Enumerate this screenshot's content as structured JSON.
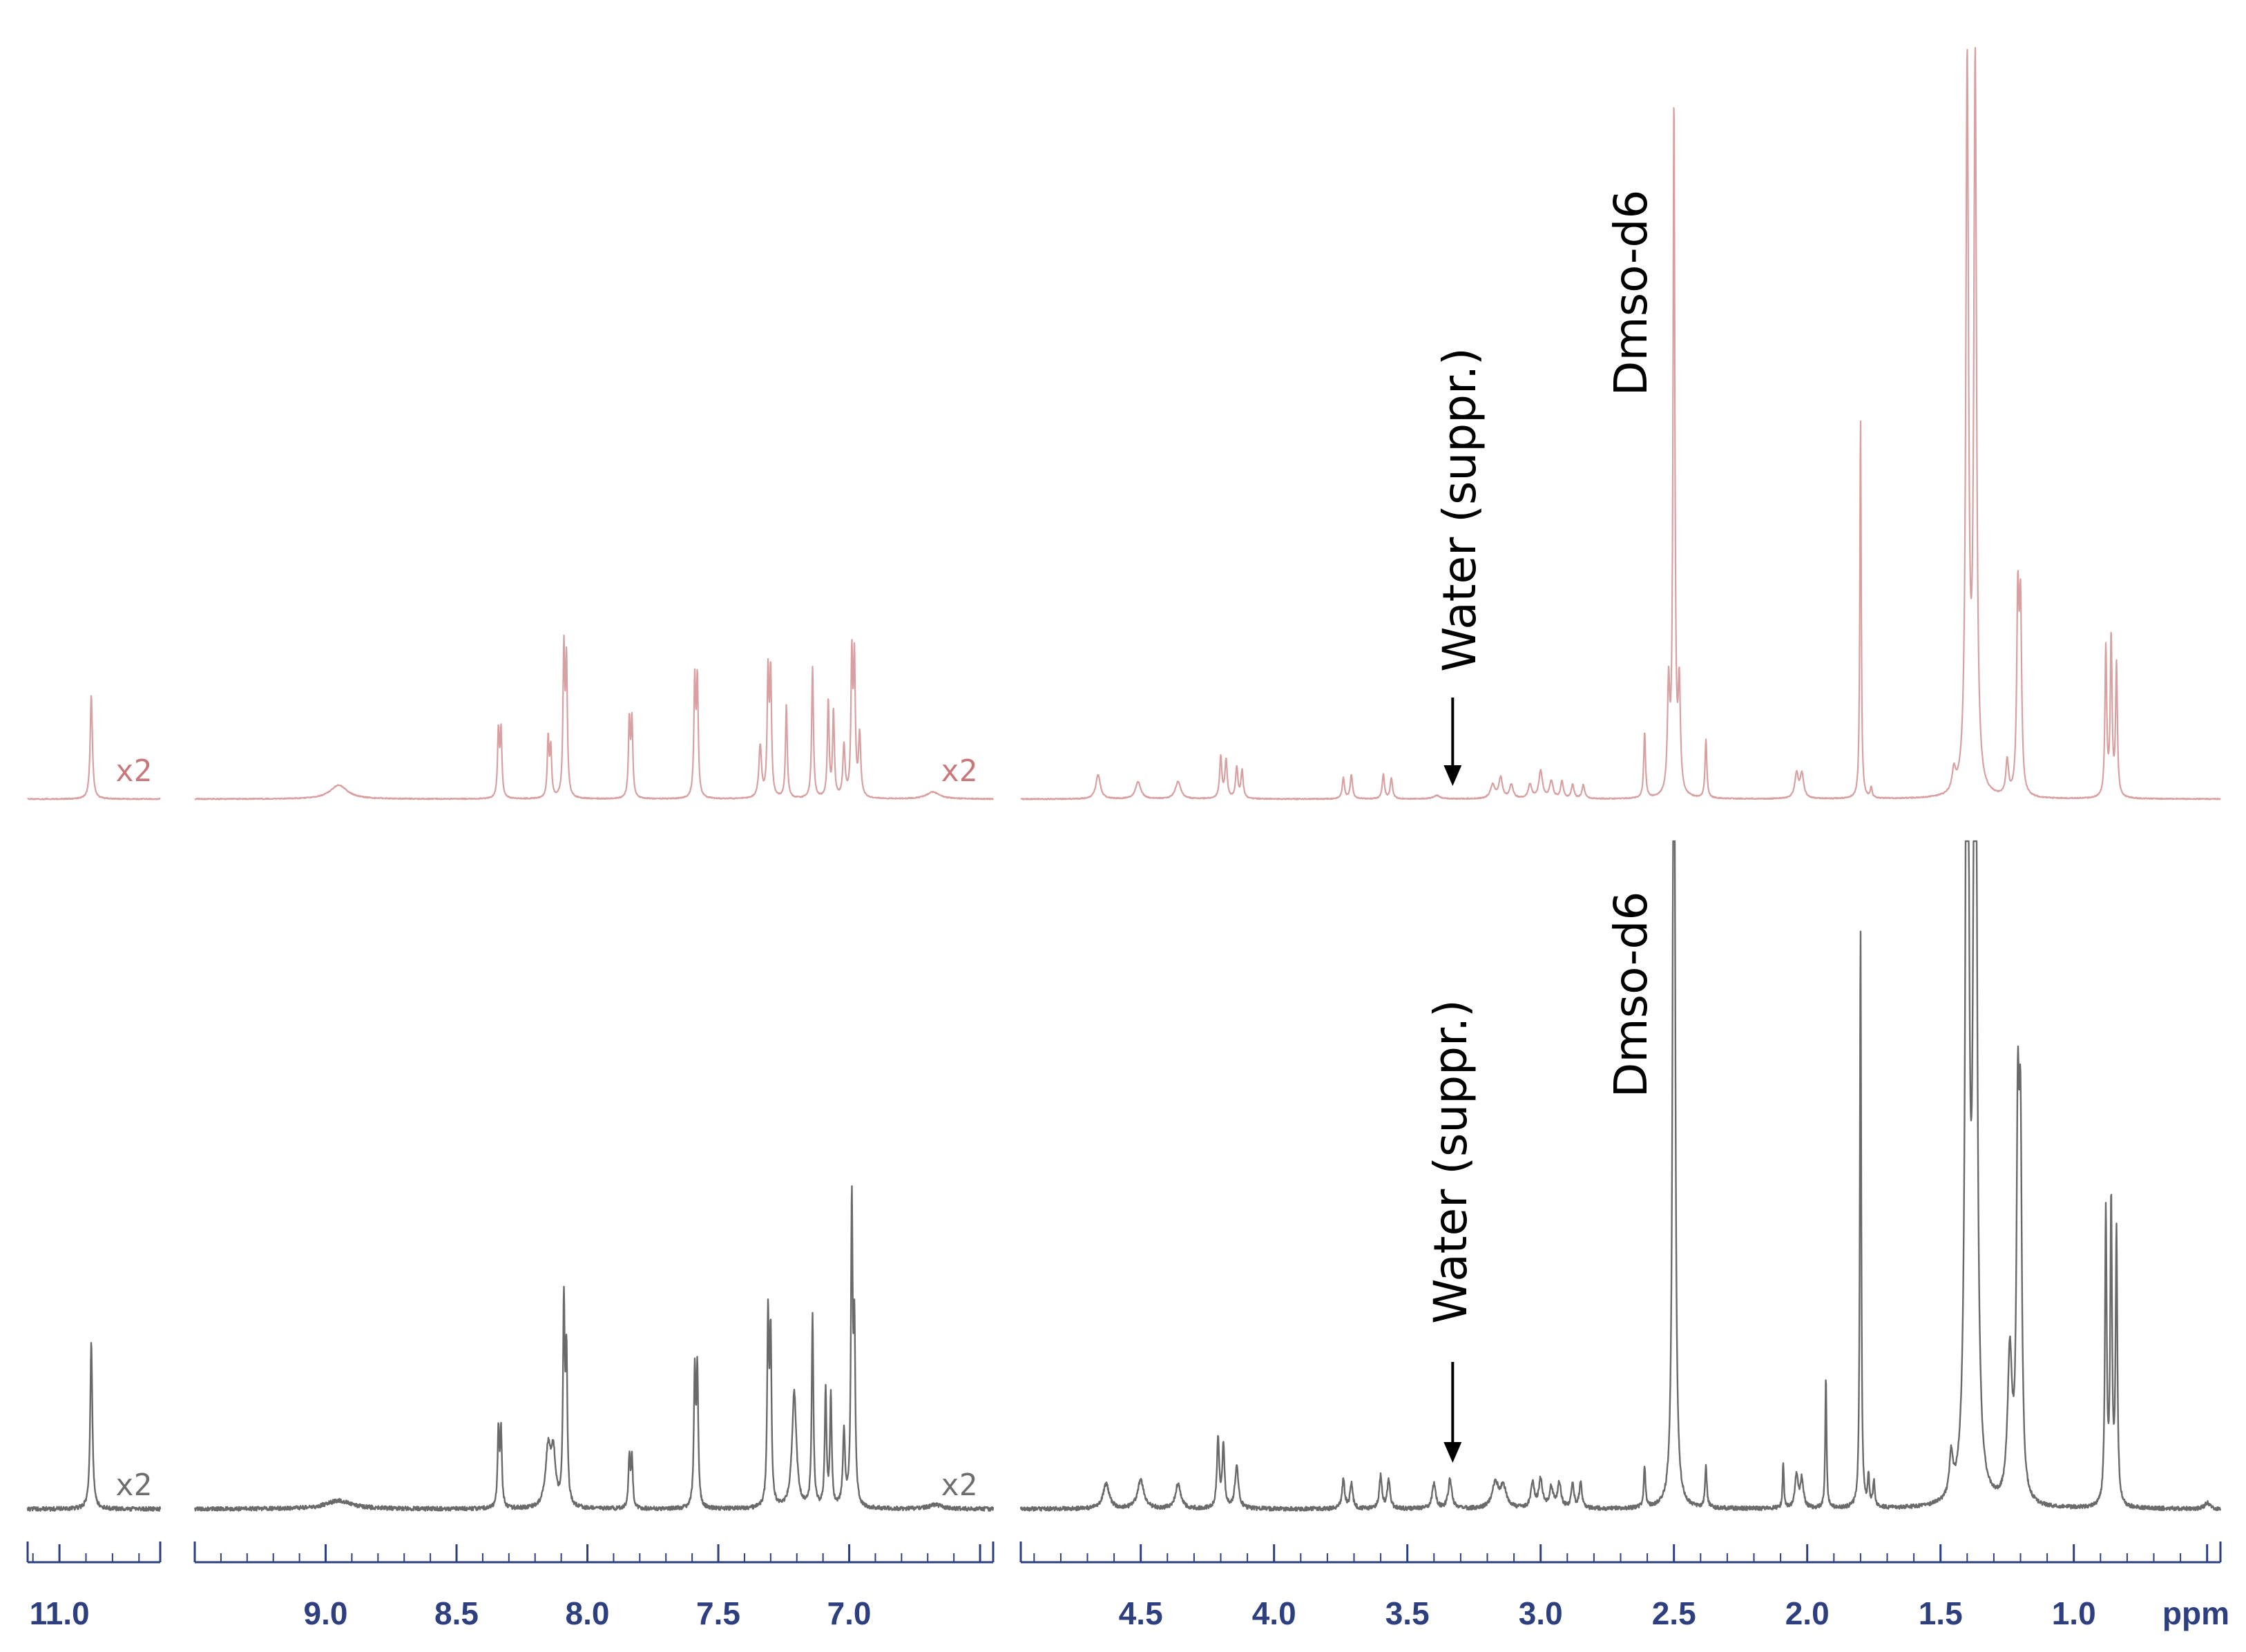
{
  "chart_data": {
    "type": "line",
    "title": "",
    "xlabel": "ppm",
    "ylabel": "",
    "x_direction": "decreasing",
    "broken_axis": true,
    "colors": {
      "top": "#d9a0a2",
      "bottom": "#6a6a6a",
      "axis": "#2e3f80"
    },
    "segments": [
      {
        "name": "region-amide",
        "x_range": [
          11.12,
          10.62
        ],
        "ticks": [
          11.0
        ],
        "tick_labels": [
          "11.0"
        ]
      },
      {
        "name": "region-aromatic",
        "x_range": [
          9.5,
          6.45
        ],
        "ticks": [
          9.0,
          8.5,
          8.0,
          7.5,
          7.0
        ],
        "tick_labels": [
          "9.0",
          "8.5",
          "8.0",
          "7.5",
          "7.0"
        ]
      },
      {
        "name": "region-aliphatic",
        "x_range": [
          4.95,
          0.45
        ],
        "ticks": [
          4.5,
          4.0,
          3.5,
          3.0,
          2.5,
          2.0,
          1.5,
          1.0
        ],
        "tick_labels": [
          "4.5",
          "4.0",
          "3.5",
          "3.0",
          "2.5",
          "2.0",
          "1.5",
          "1.0"
        ]
      }
    ],
    "series": [
      {
        "key": "top",
        "color": "#d9a0a2",
        "peaks": [
          [
            10.88,
            0.3,
            0.005
          ],
          [
            8.95,
            0.04,
            0.04
          ],
          [
            8.34,
            0.19,
            0.004
          ],
          [
            8.33,
            0.19,
            0.004
          ],
          [
            8.15,
            0.17,
            0.004
          ],
          [
            8.14,
            0.14,
            0.004
          ],
          [
            8.09,
            0.42,
            0.004
          ],
          [
            8.08,
            0.38,
            0.004
          ],
          [
            7.84,
            0.22,
            0.004
          ],
          [
            7.83,
            0.22,
            0.004
          ],
          [
            7.59,
            0.33,
            0.004
          ],
          [
            7.58,
            0.33,
            0.004
          ],
          [
            7.34,
            0.15,
            0.006
          ],
          [
            7.31,
            0.35,
            0.004
          ],
          [
            7.3,
            0.35,
            0.004
          ],
          [
            7.24,
            0.27,
            0.004
          ],
          [
            7.14,
            0.38,
            0.004
          ],
          [
            7.08,
            0.28,
            0.004
          ],
          [
            7.06,
            0.25,
            0.004
          ],
          [
            7.02,
            0.15,
            0.005
          ],
          [
            6.99,
            0.4,
            0.004
          ],
          [
            6.98,
            0.38,
            0.004
          ],
          [
            6.96,
            0.18,
            0.005
          ],
          [
            6.68,
            0.02,
            0.03
          ],
          [
            4.66,
            0.07,
            0.01
          ],
          [
            4.51,
            0.05,
            0.012
          ],
          [
            4.36,
            0.05,
            0.012
          ],
          [
            4.2,
            0.12,
            0.005
          ],
          [
            4.18,
            0.11,
            0.005
          ],
          [
            4.14,
            0.09,
            0.005
          ],
          [
            4.12,
            0.08,
            0.005
          ],
          [
            3.74,
            0.06,
            0.005
          ],
          [
            3.71,
            0.07,
            0.005
          ],
          [
            3.59,
            0.07,
            0.005
          ],
          [
            3.56,
            0.06,
            0.005
          ],
          [
            3.39,
            0.01,
            0.015
          ],
          [
            3.18,
            0.04,
            0.01
          ],
          [
            3.15,
            0.06,
            0.008
          ],
          [
            3.11,
            0.04,
            0.008
          ],
          [
            3.04,
            0.04,
            0.008
          ],
          [
            3.0,
            0.08,
            0.008
          ],
          [
            2.96,
            0.05,
            0.008
          ],
          [
            2.92,
            0.05,
            0.006
          ],
          [
            2.88,
            0.04,
            0.006
          ],
          [
            2.84,
            0.04,
            0.006
          ],
          [
            2.61,
            0.19,
            0.004
          ],
          [
            2.52,
            0.3,
            0.005
          ],
          [
            2.5,
            2.0,
            0.004
          ],
          [
            2.48,
            0.3,
            0.005
          ],
          [
            2.38,
            0.17,
            0.004
          ],
          [
            2.04,
            0.07,
            0.008
          ],
          [
            2.02,
            0.07,
            0.008
          ],
          [
            1.8,
            1.1,
            0.003
          ],
          [
            1.76,
            0.03,
            0.004
          ],
          [
            1.45,
            0.06,
            0.008
          ],
          [
            1.4,
            2.1,
            0.006
          ],
          [
            1.37,
            2.1,
            0.006
          ],
          [
            1.25,
            0.1,
            0.006
          ],
          [
            1.21,
            0.55,
            0.005
          ],
          [
            1.2,
            0.52,
            0.005
          ],
          [
            0.88,
            0.43,
            0.004
          ],
          [
            0.86,
            0.46,
            0.004
          ],
          [
            0.84,
            0.38,
            0.004
          ]
        ]
      },
      {
        "key": "bottom",
        "color": "#6a6a6a",
        "peaks": [
          [
            10.88,
            0.4,
            0.005
          ],
          [
            8.95,
            0.02,
            0.06
          ],
          [
            8.34,
            0.18,
            0.004
          ],
          [
            8.33,
            0.18,
            0.004
          ],
          [
            8.15,
            0.14,
            0.012
          ],
          [
            8.13,
            0.12,
            0.01
          ],
          [
            8.09,
            0.48,
            0.004
          ],
          [
            8.08,
            0.35,
            0.004
          ],
          [
            7.84,
            0.12,
            0.004
          ],
          [
            7.83,
            0.12,
            0.004
          ],
          [
            7.59,
            0.32,
            0.004
          ],
          [
            7.58,
            0.32,
            0.004
          ],
          [
            7.31,
            0.45,
            0.004
          ],
          [
            7.3,
            0.4,
            0.004
          ],
          [
            7.21,
            0.28,
            0.01
          ],
          [
            7.14,
            0.46,
            0.004
          ],
          [
            7.09,
            0.28,
            0.004
          ],
          [
            7.07,
            0.27,
            0.004
          ],
          [
            7.02,
            0.18,
            0.005
          ],
          [
            6.99,
            0.72,
            0.004
          ],
          [
            6.98,
            0.4,
            0.004
          ],
          [
            6.67,
            0.01,
            0.03
          ],
          [
            4.63,
            0.06,
            0.014
          ],
          [
            4.5,
            0.07,
            0.014
          ],
          [
            4.36,
            0.06,
            0.012
          ],
          [
            4.21,
            0.17,
            0.005
          ],
          [
            4.19,
            0.15,
            0.005
          ],
          [
            4.14,
            0.1,
            0.008
          ],
          [
            3.74,
            0.07,
            0.006
          ],
          [
            3.71,
            0.06,
            0.006
          ],
          [
            3.6,
            0.08,
            0.006
          ],
          [
            3.57,
            0.07,
            0.006
          ],
          [
            3.4,
            0.06,
            0.008
          ],
          [
            3.34,
            0.07,
            0.008
          ],
          [
            3.17,
            0.06,
            0.014
          ],
          [
            3.14,
            0.05,
            0.014
          ],
          [
            3.03,
            0.06,
            0.008
          ],
          [
            3.0,
            0.07,
            0.008
          ],
          [
            2.96,
            0.05,
            0.008
          ],
          [
            2.93,
            0.06,
            0.008
          ],
          [
            2.88,
            0.06,
            0.006
          ],
          [
            2.85,
            0.06,
            0.006
          ],
          [
            2.61,
            0.1,
            0.004
          ],
          [
            2.5,
            2.5,
            0.005
          ],
          [
            2.38,
            0.1,
            0.004
          ],
          [
            2.09,
            0.11,
            0.003
          ],
          [
            2.04,
            0.08,
            0.007
          ],
          [
            2.02,
            0.07,
            0.007
          ],
          [
            1.93,
            0.32,
            0.003
          ],
          [
            1.8,
            1.4,
            0.003
          ],
          [
            1.77,
            0.07,
            0.004
          ],
          [
            1.75,
            0.06,
            0.004
          ],
          [
            1.46,
            0.1,
            0.008
          ],
          [
            1.4,
            2.6,
            0.007
          ],
          [
            1.37,
            2.6,
            0.007
          ],
          [
            1.24,
            0.35,
            0.01
          ],
          [
            1.21,
            0.85,
            0.006
          ],
          [
            1.2,
            0.8,
            0.006
          ],
          [
            0.88,
            0.7,
            0.004
          ],
          [
            0.86,
            0.72,
            0.004
          ],
          [
            0.84,
            0.65,
            0.004
          ],
          [
            0.5,
            0.015,
            0.01
          ]
        ]
      }
    ],
    "annotations": [
      {
        "series": "top",
        "text": "Dmso-d6",
        "x": 2.5
      },
      {
        "series": "top",
        "text": "Water (suppr.)",
        "x": 3.33
      },
      {
        "series": "bottom",
        "text": "Dmso-d6",
        "x": 2.5
      },
      {
        "series": "bottom",
        "text": "Water (suppr.)",
        "x": 3.33
      }
    ],
    "scale_markers": [
      {
        "series": "top",
        "text": "x2",
        "x": 10.72
      },
      {
        "series": "top",
        "text": "x2",
        "x": 6.58
      },
      {
        "series": "bottom",
        "text": "x2",
        "x": 10.72
      },
      {
        "series": "bottom",
        "text": "x2",
        "x": 6.58
      }
    ]
  }
}
